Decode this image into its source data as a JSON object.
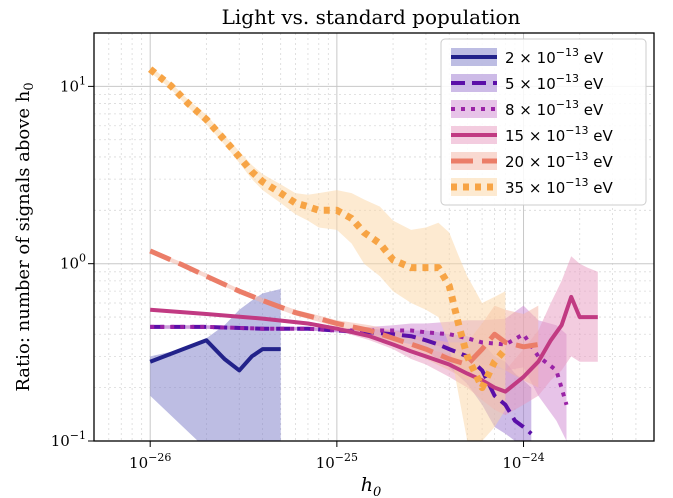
{
  "chart_data": {
    "type": "line",
    "title": "Light vs. standard population",
    "xlabel": "h",
    "xlabel_sub": "0",
    "ylabel": "Ratio: number of signals above h",
    "ylabel_sub": "0",
    "x_scale": "log",
    "y_scale": "log",
    "xlim": [
      5e-27,
      5e-24
    ],
    "ylim": [
      0.1,
      20
    ],
    "grid": true,
    "legend_position": "top-right",
    "x_ticks": [
      {
        "value": 1e-26,
        "mantissa": "10",
        "exp": "−26"
      },
      {
        "value": 1e-25,
        "mantissa": "10",
        "exp": "−25"
      },
      {
        "value": 1e-24,
        "mantissa": "10",
        "exp": "−24"
      }
    ],
    "y_ticks": [
      {
        "value": 0.1,
        "mantissa": "10",
        "exp": "−1"
      },
      {
        "value": 1,
        "mantissa": "10",
        "exp": "0"
      },
      {
        "value": 10,
        "mantissa": "10",
        "exp": "1"
      }
    ],
    "series": [
      {
        "name": "2 × 10⁻¹³ eV",
        "legend_coef": "2",
        "color": "#22228a",
        "band_color": "#7b7bc8",
        "dash": "",
        "width": 4,
        "x": [
          1e-26,
          1.5e-26,
          2e-26,
          2.5e-26,
          3e-26,
          3.5e-26,
          4e-26,
          5e-26
        ],
        "y": [
          0.28,
          0.33,
          0.37,
          0.29,
          0.25,
          0.3,
          0.33,
          0.33
        ],
        "band_low": [
          0.18,
          0.12,
          0.09,
          0.08,
          0.08,
          0.08,
          0.08,
          0.08
        ],
        "band_high": [
          0.3,
          0.33,
          0.38,
          0.45,
          0.55,
          0.62,
          0.68,
          0.72
        ]
      },
      {
        "name": "5 × 10⁻¹³ eV",
        "legend_coef": "5",
        "color": "#5a0fa8",
        "band_color": "#9b77cf",
        "dash": "14 7",
        "width": 4,
        "x": [
          1e-26,
          2e-26,
          4e-26,
          7e-26,
          1e-25,
          1.5e-25,
          2e-25,
          2.5e-25,
          3e-25,
          3.5e-25,
          4e-25,
          5e-25,
          6e-25,
          7e-25,
          8e-25,
          9e-25,
          1e-24,
          1.1e-24
        ],
        "y": [
          0.44,
          0.44,
          0.43,
          0.43,
          0.42,
          0.41,
          0.4,
          0.39,
          0.37,
          0.35,
          0.33,
          0.3,
          0.25,
          0.18,
          0.16,
          0.13,
          0.12,
          0.11
        ],
        "band_low": [
          0.43,
          0.43,
          0.42,
          0.42,
          0.41,
          0.39,
          0.37,
          0.35,
          0.32,
          0.29,
          0.26,
          0.21,
          0.16,
          0.12,
          0.11,
          0.1,
          0.1,
          0.1
        ],
        "band_high": [
          0.45,
          0.45,
          0.44,
          0.44,
          0.43,
          0.43,
          0.42,
          0.42,
          0.42,
          0.41,
          0.4,
          0.39,
          0.36,
          0.3,
          0.28,
          0.24,
          0.22,
          0.2
        ]
      },
      {
        "name": "8 × 10⁻¹³ eV",
        "legend_coef": "8",
        "color": "#9a23a6",
        "band_color": "#cf87d2",
        "dash": "4 6",
        "width": 4,
        "x": [
          1e-26,
          2e-26,
          4e-26,
          7e-26,
          1e-25,
          1.5e-25,
          2e-25,
          2.5e-25,
          3e-25,
          4e-25,
          5e-25,
          6e-25,
          8e-25,
          1e-24,
          1.2e-24,
          1.5e-24,
          1.7e-24
        ],
        "y": [
          0.44,
          0.44,
          0.43,
          0.43,
          0.42,
          0.42,
          0.42,
          0.42,
          0.41,
          0.4,
          0.38,
          0.36,
          0.35,
          0.4,
          0.3,
          0.25,
          0.16
        ],
        "band_low": [
          0.43,
          0.43,
          0.42,
          0.42,
          0.41,
          0.4,
          0.39,
          0.38,
          0.36,
          0.33,
          0.3,
          0.27,
          0.25,
          0.26,
          0.18,
          0.13,
          0.1
        ],
        "band_high": [
          0.45,
          0.45,
          0.44,
          0.44,
          0.43,
          0.44,
          0.45,
          0.46,
          0.46,
          0.47,
          0.48,
          0.48,
          0.49,
          0.58,
          0.48,
          0.45,
          0.4
        ]
      },
      {
        "name": "15 × 10⁻¹³ eV",
        "legend_coef": "15",
        "color": "#c13a82",
        "band_color": "#e79ac0",
        "dash": "",
        "width": 4,
        "x": [
          1e-26,
          2e-26,
          4e-26,
          7e-26,
          1e-25,
          1.5e-25,
          2e-25,
          2.5e-25,
          3e-25,
          4e-25,
          5e-25,
          6e-25,
          7e-25,
          8e-25,
          1e-24,
          1.2e-24,
          1.4e-24,
          1.6e-24,
          1.8e-24,
          2e-24,
          2.2e-24,
          2.5e-24
        ],
        "y": [
          0.55,
          0.52,
          0.49,
          0.46,
          0.43,
          0.39,
          0.35,
          0.32,
          0.3,
          0.27,
          0.24,
          0.22,
          0.2,
          0.19,
          0.23,
          0.28,
          0.37,
          0.45,
          0.65,
          0.5,
          0.5,
          0.5
        ],
        "band_low": [
          0.54,
          0.51,
          0.48,
          0.45,
          0.42,
          0.37,
          0.33,
          0.29,
          0.27,
          0.23,
          0.2,
          0.17,
          0.15,
          0.14,
          0.16,
          0.18,
          0.22,
          0.25,
          0.3,
          0.28,
          0.28,
          0.28
        ],
        "band_high": [
          0.56,
          0.53,
          0.5,
          0.47,
          0.44,
          0.41,
          0.37,
          0.35,
          0.33,
          0.31,
          0.28,
          0.27,
          0.26,
          0.25,
          0.33,
          0.42,
          0.6,
          0.8,
          1.1,
          1.0,
          0.95,
          0.9
        ]
      },
      {
        "name": "20 × 10⁻¹³ eV",
        "legend_coef": "20",
        "color": "#eb7d68",
        "band_color": "#f4b3a3",
        "dash": "22 9",
        "width": 5,
        "x": [
          1e-26,
          1.5e-26,
          2e-26,
          3e-26,
          4e-26,
          6e-26,
          8e-26,
          1e-25,
          1.5e-25,
          2e-25,
          3e-25,
          4e-25,
          5e-25,
          6e-25,
          7e-25,
          8e-25,
          1e-24,
          1.2e-24
        ],
        "y": [
          1.18,
          0.98,
          0.85,
          0.7,
          0.62,
          0.53,
          0.49,
          0.46,
          0.42,
          0.38,
          0.33,
          0.29,
          0.27,
          0.33,
          0.4,
          0.36,
          0.34,
          0.35
        ],
        "band_low": [
          1.15,
          0.95,
          0.83,
          0.68,
          0.6,
          0.51,
          0.47,
          0.44,
          0.39,
          0.35,
          0.29,
          0.25,
          0.22,
          0.24,
          0.27,
          0.25,
          0.22,
          0.2
        ],
        "band_high": [
          1.21,
          1.01,
          0.88,
          0.72,
          0.64,
          0.55,
          0.51,
          0.48,
          0.45,
          0.42,
          0.38,
          0.36,
          0.36,
          0.46,
          0.58,
          0.55,
          0.52,
          0.58
        ]
      },
      {
        "name": "35 × 10⁻¹³ eV",
        "legend_coef": "35",
        "color": "#f7a445",
        "band_color": "#fbd5a4",
        "dash": "6 6",
        "width": 7,
        "x": [
          1e-26,
          1.3e-26,
          1.6e-26,
          2e-26,
          2.5e-26,
          3e-26,
          3.5e-26,
          4e-26,
          5e-26,
          6e-26,
          7e-26,
          8e-26,
          1e-25,
          1.2e-25,
          1.4e-25,
          1.7e-25,
          2e-25,
          2.5e-25,
          3e-25,
          3.5e-25,
          4e-25,
          4.5e-25,
          5e-25,
          6e-25,
          7e-25,
          8e-25
        ],
        "y": [
          12.5,
          10.0,
          8.0,
          6.5,
          5.0,
          4.0,
          3.3,
          2.9,
          2.5,
          2.2,
          2.1,
          2.0,
          2.0,
          1.8,
          1.5,
          1.3,
          1.05,
          0.95,
          0.95,
          0.95,
          0.75,
          0.45,
          0.3,
          0.2,
          0.28,
          0.33
        ],
        "band_low": [
          12.0,
          9.6,
          7.6,
          6.1,
          4.7,
          3.7,
          3.0,
          2.6,
          2.2,
          1.9,
          1.75,
          1.6,
          1.55,
          1.3,
          1.0,
          0.85,
          0.7,
          0.6,
          0.55,
          0.5,
          0.35,
          0.18,
          0.1,
          0.1,
          0.12,
          0.15
        ],
        "band_high": [
          13.0,
          10.4,
          8.4,
          6.9,
          5.3,
          4.3,
          3.6,
          3.2,
          2.8,
          2.5,
          2.45,
          2.5,
          2.6,
          2.5,
          2.3,
          2.1,
          1.75,
          1.55,
          1.6,
          1.7,
          1.5,
          1.1,
          0.85,
          0.6,
          0.65,
          0.7
        ]
      }
    ]
  }
}
